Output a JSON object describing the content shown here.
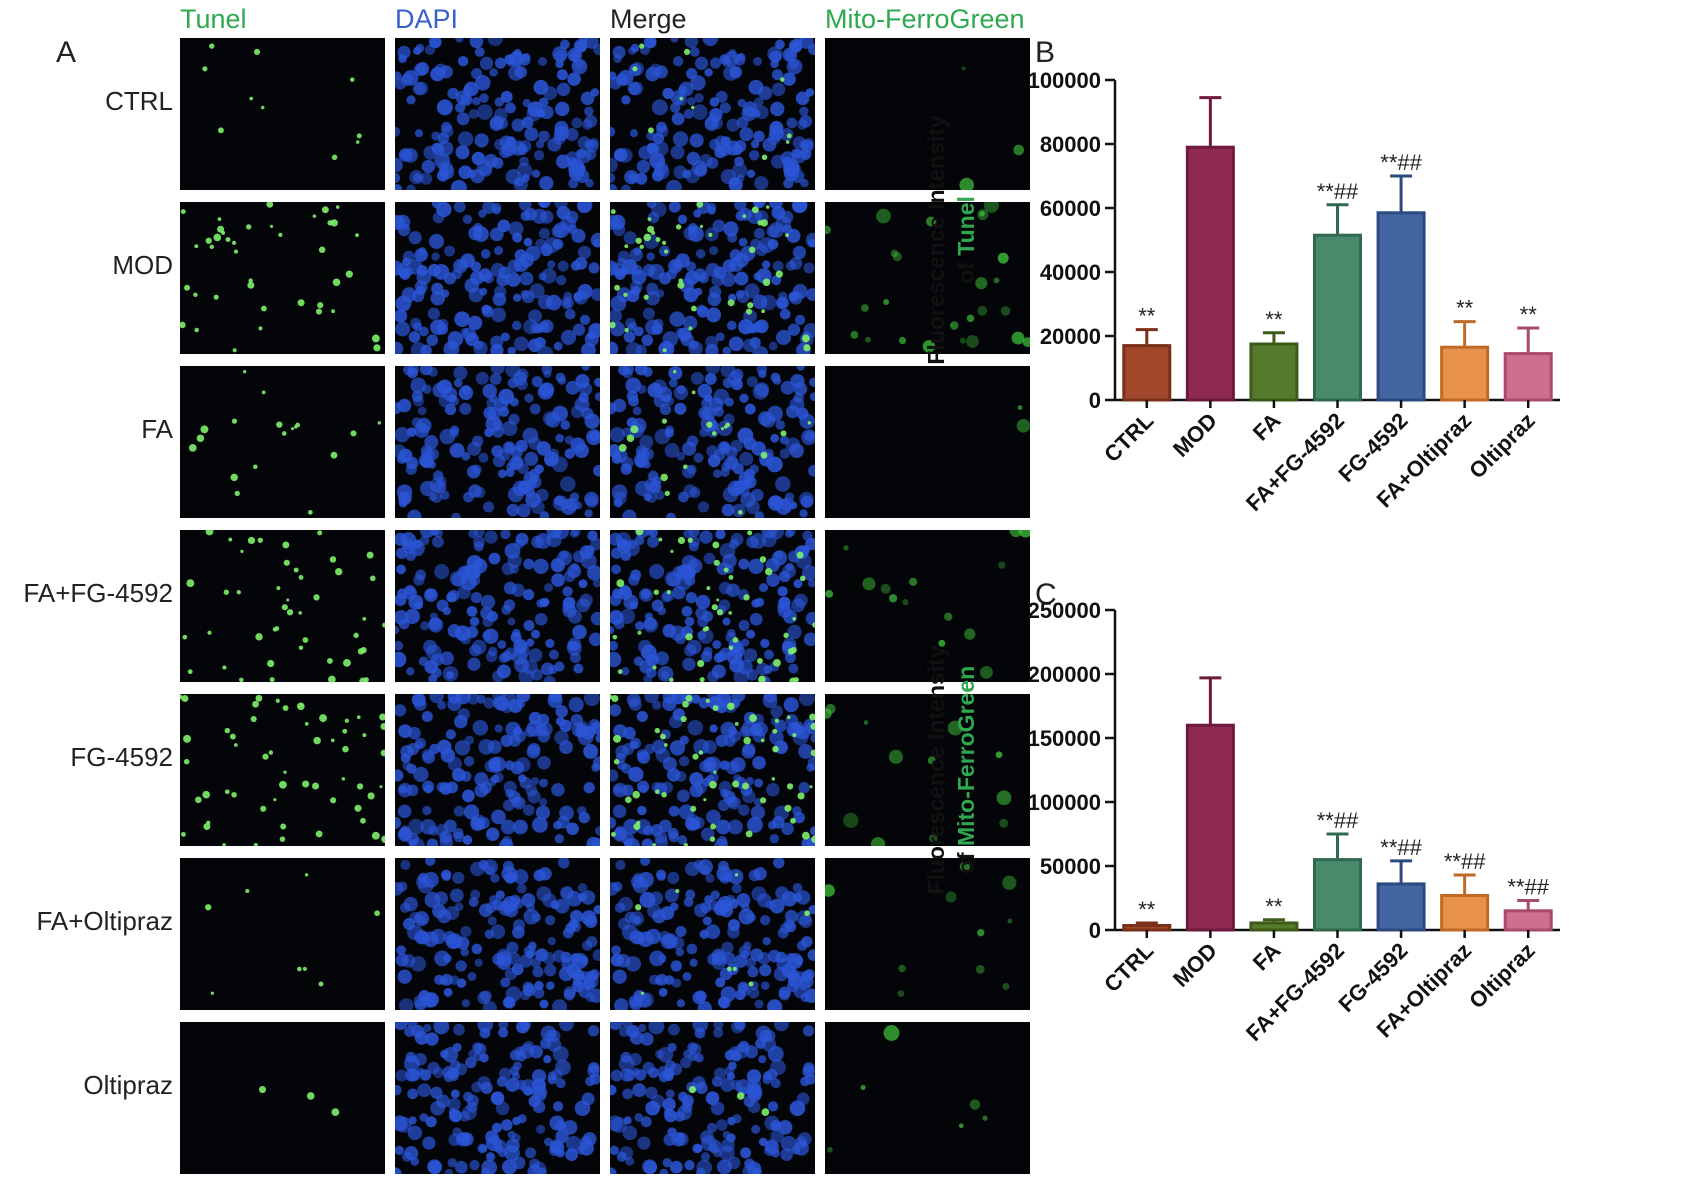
{
  "figure": {
    "panels": {
      "a": "A",
      "b": "B",
      "c": "C"
    },
    "columns": [
      {
        "label": "Tunel",
        "color": "#2fa84f"
      },
      {
        "label": "DAPI",
        "color": "#3a5fc8"
      },
      {
        "label": "Merge",
        "color": "#222222"
      },
      {
        "label": "Mito-FerroGreen",
        "color": "#2fa84f"
      }
    ],
    "rows": [
      "CTRL",
      "MOD",
      "FA",
      "FA+FG-4592",
      "FG-4592",
      "FA+Oltipraz",
      "Oltipraz"
    ],
    "colors": {
      "green_text": "#2fa84f",
      "dapi_blue": "#2b55d6",
      "tunel_green": "#7df06a"
    }
  },
  "chart_data": [
    {
      "type": "bar",
      "panel": "B",
      "ylabel_prefix": "Fluorescence Intensity",
      "ylabel_of": "of",
      "ylabel_marker": "Tunel",
      "categories": [
        "CTRL",
        "MOD",
        "FA",
        "FA+FG-4592",
        "FG-4592",
        "FA+Oltipraz",
        "Oltipraz"
      ],
      "values": [
        17000,
        79000,
        17500,
        51500,
        58500,
        16500,
        14500
      ],
      "errors": [
        5000,
        15500,
        3500,
        9500,
        11500,
        8000,
        8000
      ],
      "annotations": [
        "**",
        "",
        "**",
        "**##",
        "**##",
        "**",
        "**"
      ],
      "colors": [
        "#a0472b",
        "#8e2a52",
        "#567a2b",
        "#4a8a6c",
        "#4366a3",
        "#e8914a",
        "#cf6f90"
      ],
      "edge_colors": [
        "#7a3018",
        "#6d1a3c",
        "#3d5a18",
        "#2f6a4e",
        "#2a4a80",
        "#c06a28",
        "#a84a6d"
      ],
      "yticks": [
        "0",
        "20000",
        "40000",
        "60000",
        "80000",
        "100000"
      ],
      "ylim": [
        0,
        100000
      ]
    },
    {
      "type": "bar",
      "panel": "C",
      "ylabel_prefix": "Fluorescence Intensity",
      "ylabel_of": "of",
      "ylabel_marker": "Mito-FerroGreen",
      "categories": [
        "CTRL",
        "MOD",
        "FA",
        "FA+FG-4592",
        "FG-4592",
        "FA+Oltipraz",
        "Oltipraz"
      ],
      "values": [
        3500,
        160000,
        5500,
        55000,
        36000,
        27000,
        15000
      ],
      "errors": [
        2000,
        37000,
        2500,
        20000,
        18000,
        16000,
        8000
      ],
      "annotations": [
        "**",
        "",
        "**",
        "**##",
        "**##",
        "**##",
        "**##"
      ],
      "colors": [
        "#a0472b",
        "#8e2a52",
        "#567a2b",
        "#4a8a6c",
        "#4366a3",
        "#e8914a",
        "#cf6f90"
      ],
      "edge_colors": [
        "#7a3018",
        "#6d1a3c",
        "#3d5a18",
        "#2f6a4e",
        "#2a4a80",
        "#c06a28",
        "#a84a6d"
      ],
      "yticks": [
        "0",
        "50000",
        "100000",
        "150000",
        "200000",
        "250000"
      ],
      "ylim": [
        0,
        250000
      ]
    }
  ]
}
